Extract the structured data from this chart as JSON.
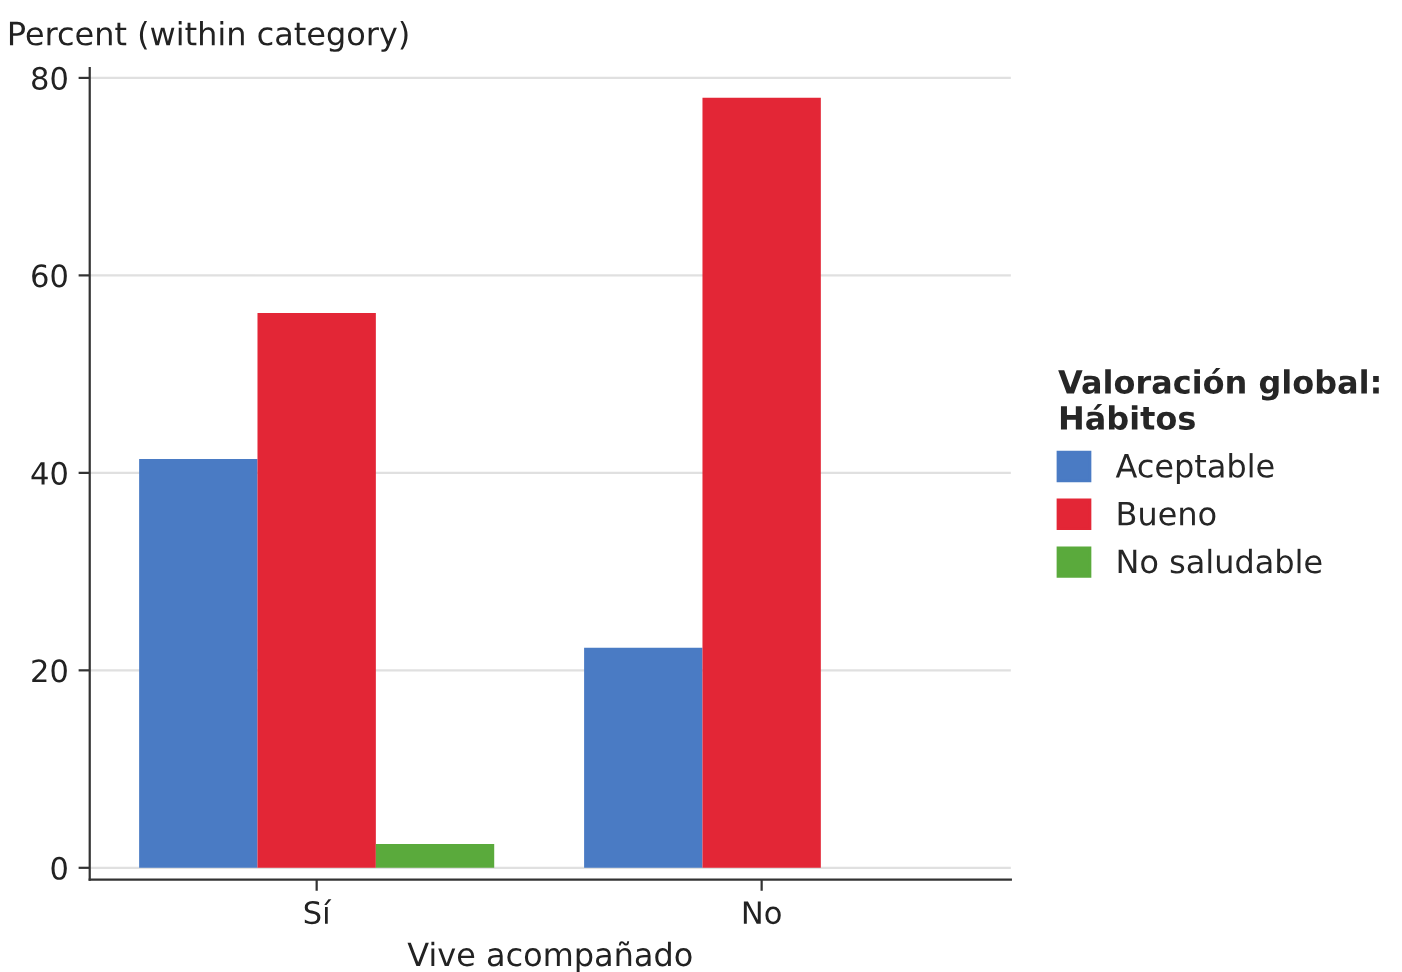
{
  "chart_data": {
    "type": "bar",
    "xlabel": "Vive acompañado",
    "ylabel": "Percent (within category)",
    "legend_title": "Valoración global:\nHábitos",
    "categories": [
      "Sí",
      "No"
    ],
    "series": [
      {
        "name": "Aceptable",
        "color": "#4a7bc4",
        "values": [
          41.4,
          22.3
        ]
      },
      {
        "name": "Bueno",
        "color": "#e32636",
        "values": [
          56.2,
          78.0
        ]
      },
      {
        "name": "No saludable",
        "color": "#5aaa3c",
        "values": [
          2.4,
          null
        ]
      }
    ],
    "ylim": [
      -1.2,
      81
    ],
    "yticks": [
      0,
      20,
      40,
      60,
      80
    ],
    "grid": "y",
    "legend": "right"
  }
}
